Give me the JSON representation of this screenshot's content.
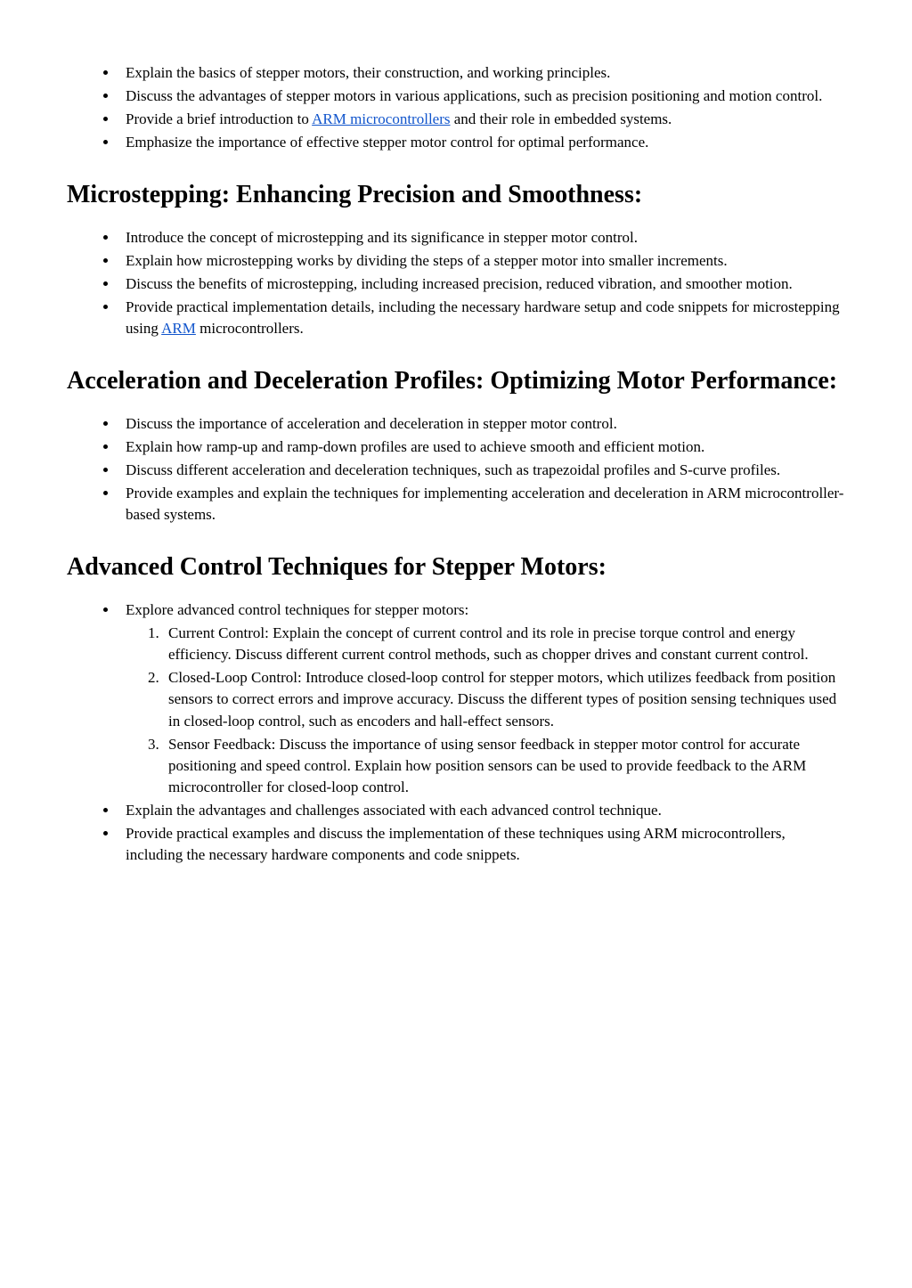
{
  "intro": {
    "items": [
      {
        "text": "Explain the basics of stepper motors, their construction, and working principles."
      },
      {
        "text": "Discuss the advantages of stepper motors in various applications, such as precision positioning and motion control."
      },
      {
        "prefix": "Provide a brief introduction to ",
        "link": "ARM microcontrollers",
        "suffix": " and their role in embedded systems."
      },
      {
        "text": "Emphasize the importance of effective stepper motor control for optimal performance."
      }
    ]
  },
  "section1": {
    "heading": "Microstepping: Enhancing Precision and Smoothness:",
    "items": [
      {
        "text": "Introduce the concept of microstepping and its significance in stepper motor control."
      },
      {
        "text": "Explain how microstepping works by dividing the steps of a stepper motor into smaller increments."
      },
      {
        "text": "Discuss the benefits of microstepping, including increased precision, reduced vibration, and smoother motion."
      },
      {
        "prefix": "Provide practical implementation details, including the necessary hardware setup and code snippets for microstepping using ",
        "link": "ARM",
        "suffix": " microcontrollers."
      }
    ]
  },
  "section2": {
    "heading": " Acceleration and Deceleration Profiles: Optimizing Motor Performance:",
    "items": [
      {
        "text": "Discuss the importance of acceleration and deceleration in stepper motor control."
      },
      {
        "text": "Explain how ramp-up and ramp-down profiles are used to achieve smooth and efficient motion."
      },
      {
        "text": "Discuss different acceleration and deceleration techniques, such as trapezoidal profiles and S-curve profiles."
      },
      {
        "text": "Provide examples and explain the techniques for implementing acceleration and deceleration in ARM microcontroller-based systems."
      }
    ]
  },
  "section3": {
    "heading": "Advanced Control Techniques for Stepper Motors:",
    "items": [
      {
        "text": "Explore advanced control techniques for stepper motors:",
        "subitems": [
          {
            "text": "Current Control: Explain the concept of current control and its role in precise torque control and energy efficiency. Discuss different current control methods, such as chopper drives and constant current control."
          },
          {
            "text": "Closed-Loop Control: Introduce closed-loop control for stepper motors, which utilizes feedback from position sensors to correct errors and improve accuracy. Discuss the different types of position sensing techniques used in closed-loop control, such as encoders and hall-effect sensors."
          },
          {
            "text": "Sensor Feedback: Discuss the importance of using sensor feedback in stepper motor control for accurate positioning and speed control. Explain how position sensors can be used to provide feedback to the ARM microcontroller for closed-loop control."
          }
        ]
      },
      {
        "text": "Explain the advantages and challenges associated with each advanced control technique."
      },
      {
        "text": "Provide practical examples and discuss the implementation of these techniques using ARM microcontrollers, including the necessary hardware components and code snippets."
      }
    ]
  }
}
